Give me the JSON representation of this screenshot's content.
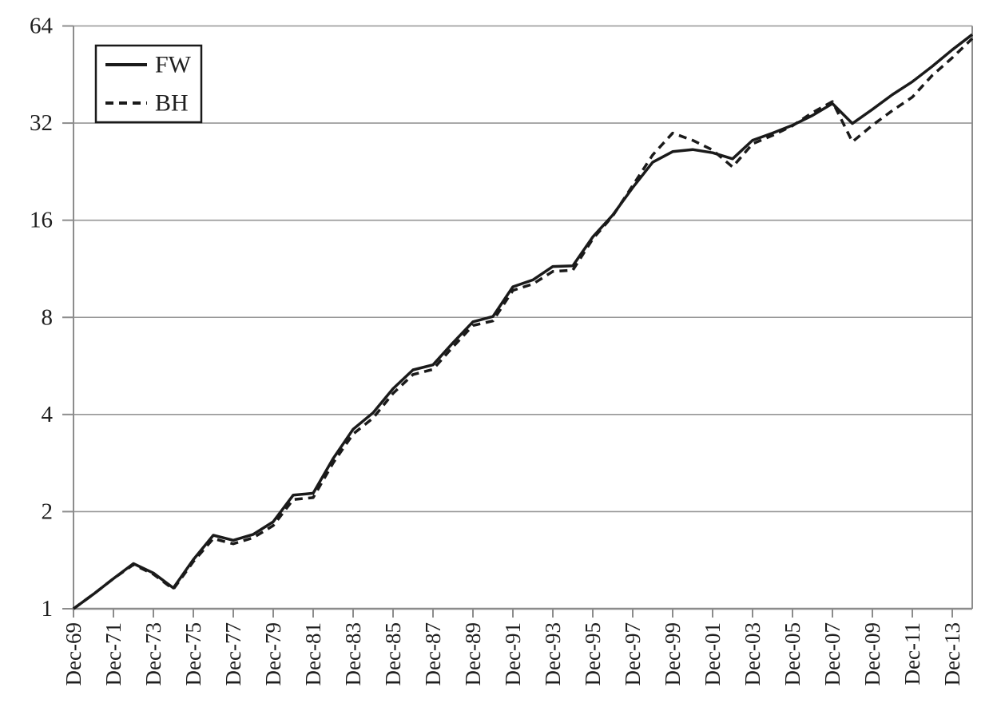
{
  "page": {
    "background": "#ffffff",
    "description": "Cumulative growth of $1 (log scale), FW vs BH, Dec-69 to Dec-14"
  },
  "colors": {
    "grid": "#969696",
    "axis": "#8c8c8c",
    "text": "#1f1f1f",
    "series": "#1a1a1a",
    "legend_border": "#1a1a1a",
    "legend_fill": "#ffffff"
  },
  "legend": {
    "position": "top-left",
    "items": [
      {
        "label": "FW",
        "line": "solid"
      },
      {
        "label": "BH",
        "line": "dashed"
      }
    ]
  },
  "chart_data": {
    "type": "line",
    "title": "",
    "xlabel": "",
    "ylabel": "",
    "y_scale": "log2",
    "ylim": [
      1,
      64
    ],
    "y_ticks": [
      1,
      2,
      4,
      8,
      16,
      32,
      64
    ],
    "grid": "horizontal",
    "legend_position": "top-left",
    "x_start_year": 1969,
    "x_end_year": 2014,
    "x_tick_label_prefix": "Dec-",
    "x_tick_labels": [
      "Dec-69",
      "Dec-71",
      "Dec-73",
      "Dec-75",
      "Dec-77",
      "Dec-79",
      "Dec-81",
      "Dec-83",
      "Dec-85",
      "Dec-87",
      "Dec-89",
      "Dec-91",
      "Dec-93",
      "Dec-95",
      "Dec-97",
      "Dec-99",
      "Dec-01",
      "Dec-03",
      "Dec-05",
      "Dec-07",
      "Dec-09",
      "Dec-11",
      "Dec-13"
    ],
    "x_tick_years": [
      1969,
      1971,
      1973,
      1975,
      1977,
      1979,
      1981,
      1983,
      1985,
      1987,
      1989,
      1991,
      1993,
      1995,
      1997,
      1999,
      2001,
      2003,
      2005,
      2007,
      2009,
      2011,
      2013
    ],
    "series": [
      {
        "name": "FW",
        "line": "solid",
        "color": "#1a1a1a",
        "values": [
          1.0,
          1.11,
          1.24,
          1.38,
          1.29,
          1.16,
          1.42,
          1.69,
          1.63,
          1.7,
          1.86,
          2.25,
          2.28,
          2.92,
          3.6,
          4.05,
          4.81,
          5.5,
          5.7,
          6.67,
          7.75,
          8.05,
          9.95,
          10.45,
          11.5,
          11.55,
          14.2,
          16.6,
          20.2,
          24.2,
          26.1,
          26.5,
          25.9,
          24.8,
          28.3,
          29.8,
          31.5,
          33.8,
          36.8,
          31.9,
          35.3,
          39.2,
          43.0,
          48.0,
          54.0,
          60.2
        ]
      },
      {
        "name": "BH",
        "line": "dashed",
        "color": "#1a1a1a",
        "values": [
          1.0,
          1.11,
          1.24,
          1.37,
          1.28,
          1.15,
          1.4,
          1.65,
          1.59,
          1.66,
          1.81,
          2.18,
          2.21,
          2.83,
          3.48,
          3.9,
          4.65,
          5.32,
          5.52,
          6.48,
          7.55,
          7.8,
          9.7,
          10.15,
          11.1,
          11.2,
          14.0,
          16.5,
          20.5,
          25.5,
          29.8,
          28.3,
          26.4,
          23.4,
          27.6,
          29.3,
          31.4,
          34.5,
          37.3,
          28.0,
          31.5,
          35.0,
          38.5,
          45.0,
          51.0,
          58.5
        ]
      }
    ]
  }
}
